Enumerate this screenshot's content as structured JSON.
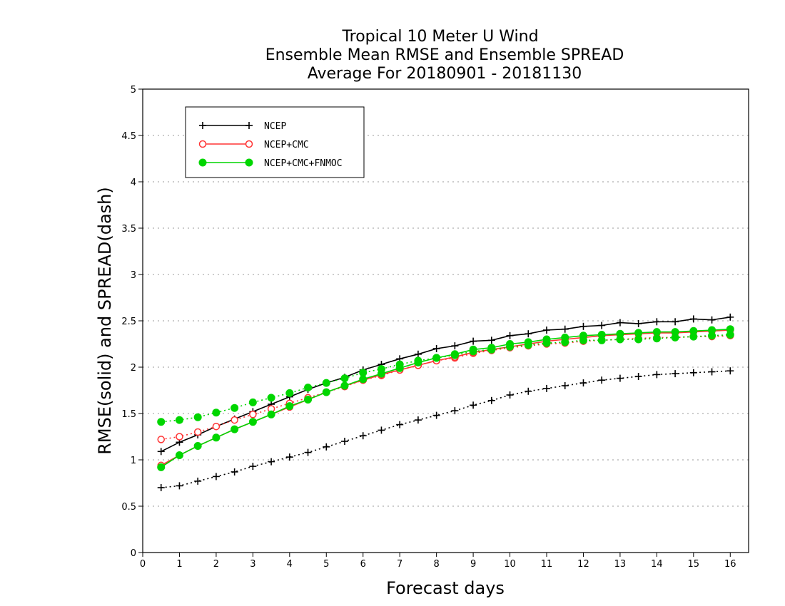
{
  "chart_data": {
    "type": "line",
    "title_lines": [
      "Tropical 10 Meter U Wind",
      "Ensemble Mean RMSE and Ensemble SPREAD",
      "Average For 20180901 - 20181130"
    ],
    "xlabel": "Forecast days",
    "ylabel": "RMSE(solid) and SPREAD(dash)",
    "xlim": [
      0,
      16.5
    ],
    "ylim": [
      0,
      5
    ],
    "xticks": [
      0,
      1,
      2,
      3,
      4,
      5,
      6,
      7,
      8,
      9,
      10,
      11,
      12,
      13,
      14,
      15,
      16
    ],
    "yticks": [
      0,
      0.5,
      1,
      1.5,
      2,
      2.5,
      3,
      3.5,
      4,
      4.5,
      5
    ],
    "ytick_labels": [
      "0",
      "0.5",
      "1",
      "1.5",
      "2",
      "2.5",
      "3",
      "3.5",
      "4",
      "4.5",
      "5"
    ],
    "grid": "horizontal dotted",
    "legend_position": "top-left",
    "x": [
      0.5,
      1,
      1.5,
      2,
      2.5,
      3,
      3.5,
      4,
      4.5,
      5,
      5.5,
      6,
      6.5,
      7,
      7.5,
      8,
      8.5,
      9,
      9.5,
      10,
      10.5,
      11,
      11.5,
      12,
      12.5,
      13,
      13.5,
      14,
      14.5,
      15,
      15.5,
      16
    ],
    "series": [
      {
        "name": "NCEP",
        "color": "#000000",
        "marker": "plus",
        "rmse": [
          1.09,
          1.19,
          1.27,
          1.36,
          1.44,
          1.52,
          1.6,
          1.68,
          1.76,
          1.83,
          1.89,
          1.97,
          2.03,
          2.09,
          2.14,
          2.2,
          2.23,
          2.28,
          2.29,
          2.34,
          2.36,
          2.4,
          2.41,
          2.44,
          2.45,
          2.48,
          2.47,
          2.49,
          2.49,
          2.52,
          2.51,
          2.54
        ],
        "spread": [
          0.7,
          0.72,
          0.77,
          0.82,
          0.87,
          0.93,
          0.98,
          1.03,
          1.08,
          1.14,
          1.2,
          1.26,
          1.32,
          1.38,
          1.43,
          1.48,
          1.53,
          1.59,
          1.64,
          1.7,
          1.74,
          1.77,
          1.8,
          1.83,
          1.86,
          1.88,
          1.9,
          1.92,
          1.93,
          1.94,
          1.95,
          1.96
        ]
      },
      {
        "name": "NCEP+CMC",
        "color": "#ff3333",
        "marker": "open-circle",
        "rmse": [
          0.94,
          1.05,
          1.15,
          1.24,
          1.33,
          1.41,
          1.49,
          1.57,
          1.65,
          1.73,
          1.8,
          1.86,
          1.92,
          1.97,
          2.02,
          2.07,
          2.11,
          2.16,
          2.19,
          2.22,
          2.25,
          2.28,
          2.3,
          2.32,
          2.34,
          2.35,
          2.36,
          2.37,
          2.37,
          2.38,
          2.39,
          2.4
        ],
        "spread": [
          1.22,
          1.25,
          1.3,
          1.36,
          1.43,
          1.49,
          1.55,
          1.61,
          1.67,
          1.73,
          1.79,
          1.86,
          1.91,
          1.97,
          2.02,
          2.07,
          2.1,
          2.15,
          2.18,
          2.21,
          2.23,
          2.25,
          2.26,
          2.28,
          2.29,
          2.3,
          2.31,
          2.32,
          2.32,
          2.33,
          2.33,
          2.34
        ]
      },
      {
        "name": "NCEP+CMC+FNMOC",
        "color": "#00d600",
        "marker": "filled-circle",
        "rmse": [
          0.92,
          1.05,
          1.15,
          1.24,
          1.33,
          1.41,
          1.49,
          1.58,
          1.65,
          1.73,
          1.8,
          1.87,
          1.93,
          1.99,
          2.05,
          2.1,
          2.14,
          2.19,
          2.21,
          2.25,
          2.27,
          2.3,
          2.32,
          2.34,
          2.35,
          2.36,
          2.37,
          2.38,
          2.38,
          2.39,
          2.4,
          2.41
        ],
        "spread": [
          1.41,
          1.43,
          1.46,
          1.51,
          1.56,
          1.62,
          1.67,
          1.72,
          1.78,
          1.83,
          1.88,
          1.94,
          1.98,
          2.03,
          2.07,
          2.1,
          2.13,
          2.17,
          2.19,
          2.22,
          2.24,
          2.26,
          2.27,
          2.29,
          2.29,
          2.3,
          2.3,
          2.31,
          2.32,
          2.33,
          2.34,
          2.35
        ]
      }
    ]
  }
}
